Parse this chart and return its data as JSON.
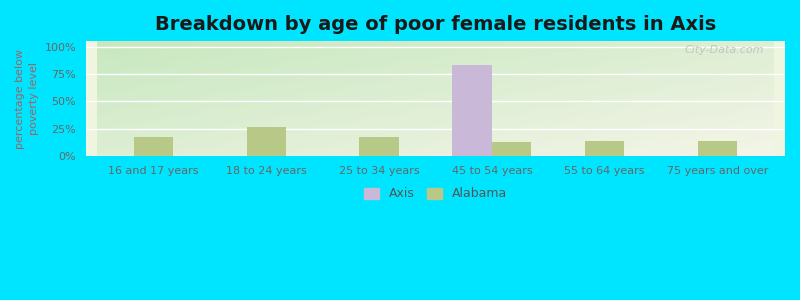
{
  "title": "Breakdown by age of poor female residents in Axis",
  "ylabel": "percentage below\npoverty level",
  "categories": [
    "16 and 17 years",
    "18 to 24 years",
    "25 to 34 years",
    "45 to 54 years",
    "55 to 64 years",
    "75 years and over"
  ],
  "axis_values": [
    0,
    0,
    0,
    83,
    0,
    0
  ],
  "alabama_values": [
    18,
    27,
    18,
    13,
    14,
    14
  ],
  "axis_color": "#c9b8d8",
  "alabama_color": "#b8c887",
  "bg_color": "#00e5ff",
  "yticks": [
    0,
    25,
    50,
    75,
    100
  ],
  "ytick_labels": [
    "0%",
    "25%",
    "50%",
    "75%",
    "100%"
  ],
  "ylim": [
    0,
    105
  ],
  "title_fontsize": 14,
  "axis_label_fontsize": 8,
  "tick_fontsize": 8,
  "legend_fontsize": 9,
  "watermark": "City-Data.com",
  "bar_width": 0.35
}
